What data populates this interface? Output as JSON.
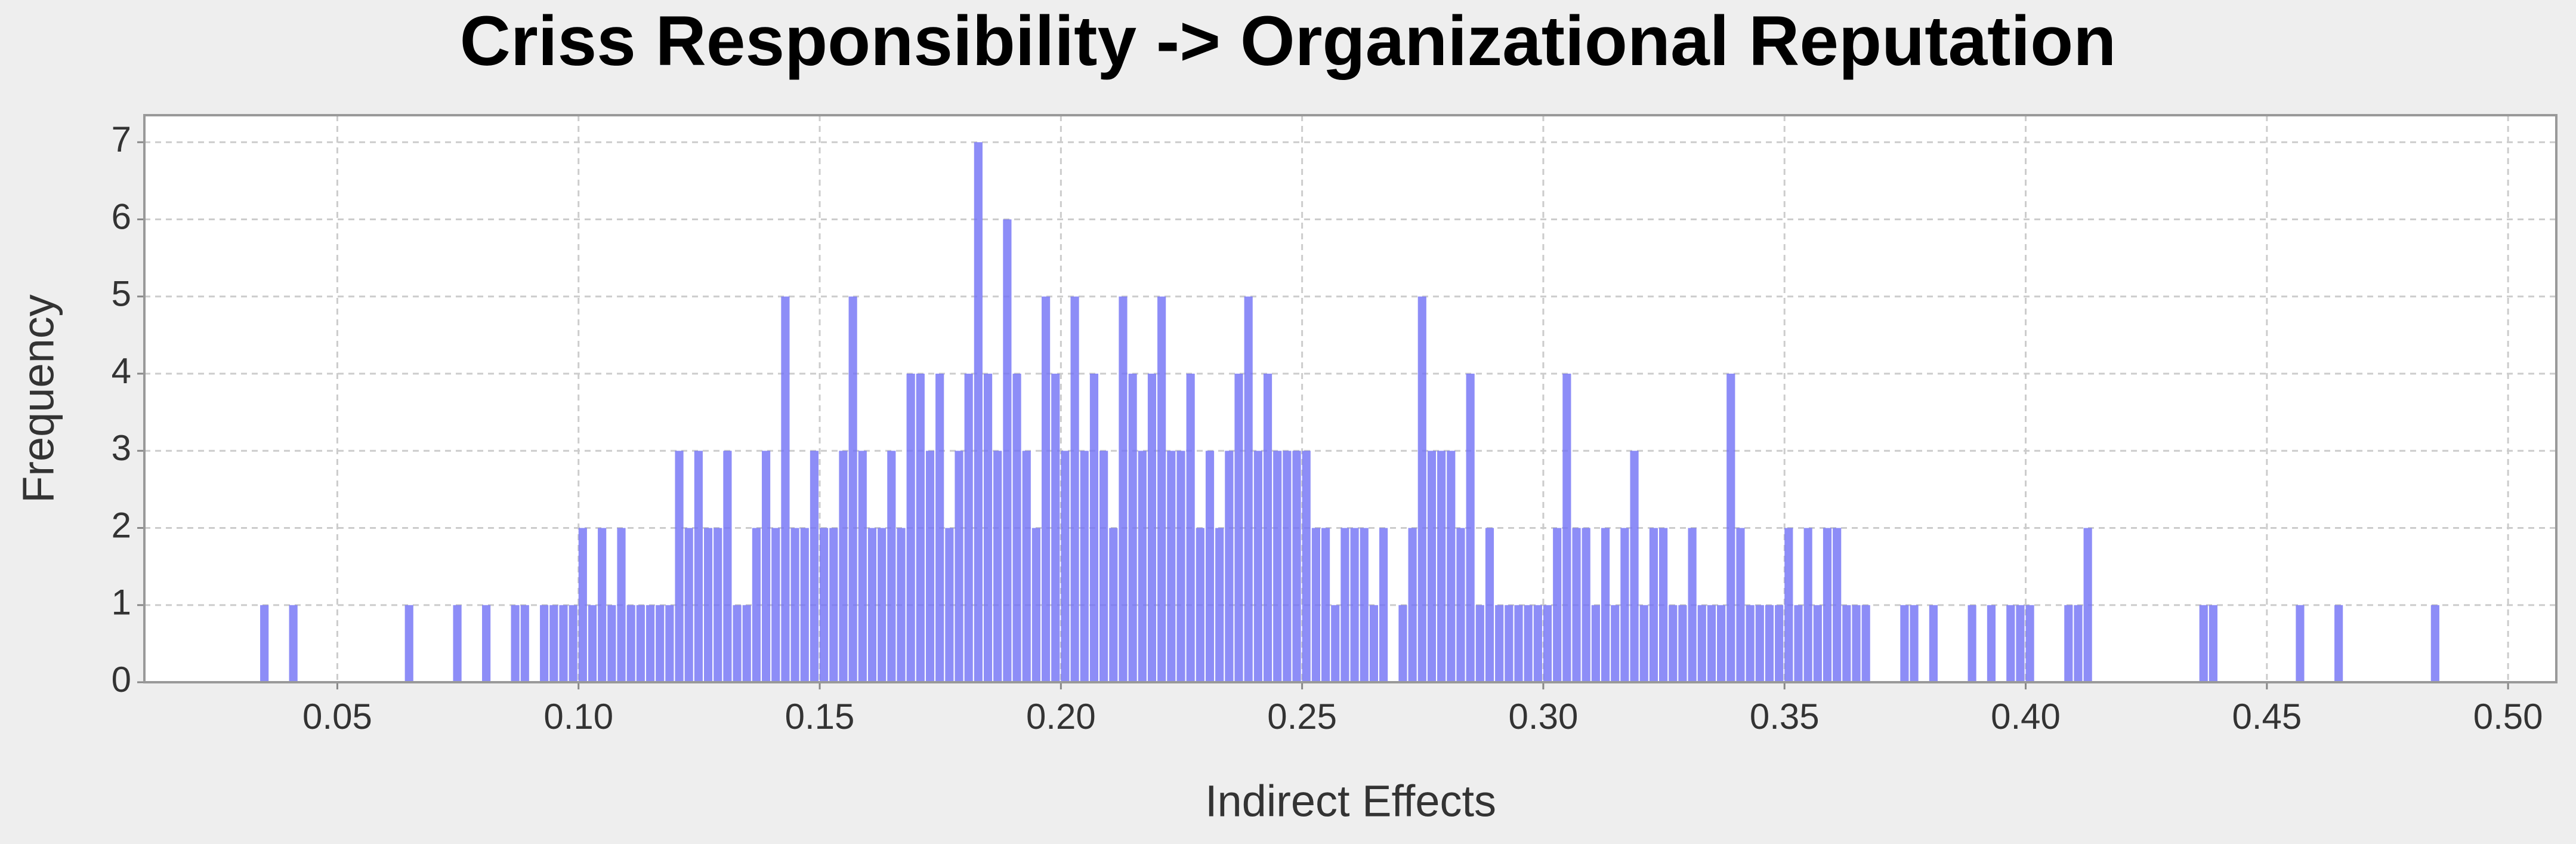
{
  "chart_data": {
    "type": "histogram",
    "title": "Criss Responsibility -> Organizational Reputation",
    "x_label": "Indirect Effects",
    "y_label": "Frequency",
    "color": "#7070f5",
    "grid": true,
    "xlim": [
      0.01,
      0.51
    ],
    "ylim": [
      0,
      7.35
    ],
    "xticks": [
      {
        "value": 0.05,
        "label": "0.05"
      },
      {
        "value": 0.1,
        "label": "0.10"
      },
      {
        "value": 0.15,
        "label": "0.15"
      },
      {
        "value": 0.2,
        "label": "0.20"
      },
      {
        "value": 0.25,
        "label": "0.25"
      },
      {
        "value": 0.3,
        "label": "0.30"
      },
      {
        "value": 0.35,
        "label": "0.35"
      },
      {
        "value": 0.4,
        "label": "0.40"
      },
      {
        "value": 0.45,
        "label": "0.45"
      },
      {
        "value": 0.5,
        "label": "0.50"
      }
    ],
    "yticks": [
      0,
      1,
      2,
      3,
      4,
      5,
      6,
      7
    ],
    "bins": [
      0.03,
      0.032,
      0.034,
      0.036,
      0.038,
      0.04,
      0.042,
      0.044,
      0.046,
      0.048,
      0.05,
      0.052,
      0.054,
      0.056,
      0.058,
      0.06,
      0.062,
      0.064,
      0.066,
      0.068,
      0.07,
      0.072,
      0.074,
      0.076,
      0.078,
      0.08,
      0.082,
      0.084,
      0.086,
      0.088,
      0.09,
      0.092,
      0.094,
      0.096,
      0.098,
      0.1,
      0.102,
      0.104,
      0.106,
      0.108,
      0.11,
      0.112,
      0.114,
      0.116,
      0.118,
      0.12,
      0.122,
      0.124,
      0.126,
      0.128,
      0.13,
      0.132,
      0.134,
      0.136,
      0.138,
      0.14,
      0.142,
      0.144,
      0.146,
      0.148,
      0.15,
      0.152,
      0.154,
      0.156,
      0.158,
      0.16,
      0.162,
      0.164,
      0.166,
      0.168,
      0.17,
      0.172,
      0.174,
      0.176,
      0.178,
      0.18,
      0.182,
      0.184,
      0.186,
      0.188,
      0.19,
      0.192,
      0.194,
      0.196,
      0.198,
      0.2,
      0.202,
      0.204,
      0.206,
      0.208,
      0.21,
      0.212,
      0.214,
      0.216,
      0.218,
      0.22,
      0.222,
      0.224,
      0.226,
      0.228,
      0.23,
      0.232,
      0.234,
      0.236,
      0.238,
      0.24,
      0.242,
      0.244,
      0.246,
      0.248,
      0.25,
      0.252,
      0.254,
      0.256,
      0.258,
      0.26,
      0.262,
      0.264,
      0.266,
      0.268,
      0.27,
      0.272,
      0.274,
      0.276,
      0.278,
      0.28,
      0.282,
      0.284,
      0.286,
      0.288,
      0.29,
      0.292,
      0.294,
      0.296,
      0.298,
      0.3,
      0.302,
      0.304,
      0.306,
      0.308,
      0.31,
      0.312,
      0.314,
      0.316,
      0.318,
      0.32,
      0.322,
      0.324,
      0.326,
      0.328,
      0.33,
      0.332,
      0.334,
      0.336,
      0.338,
      0.34,
      0.342,
      0.344,
      0.346,
      0.348,
      0.35,
      0.352,
      0.354,
      0.356,
      0.358,
      0.36,
      0.362,
      0.364,
      0.366,
      0.368,
      0.37,
      0.372,
      0.374,
      0.376,
      0.378,
      0.38,
      0.382,
      0.384,
      0.386,
      0.388,
      0.39,
      0.392,
      0.394,
      0.396,
      0.398,
      0.4,
      0.402,
      0.404,
      0.406,
      0.408,
      0.41,
      0.412,
      0.414,
      0.416,
      0.418,
      0.42,
      0.422,
      0.424,
      0.426,
      0.428,
      0.43,
      0.432,
      0.434,
      0.436,
      0.438,
      0.44,
      0.442,
      0.444,
      0.446,
      0.448,
      0.45,
      0.452,
      0.454,
      0.456,
      0.458,
      0.46,
      0.462,
      0.464,
      0.466,
      0.468,
      0.47,
      0.472,
      0.474,
      0.476,
      0.478,
      0.48,
      0.482,
      0.484,
      0.486,
      0.488,
      0.49
    ],
    "counts": [
      0,
      0,
      1,
      0,
      0,
      1,
      0,
      0,
      0,
      0,
      0,
      0,
      0,
      0,
      0,
      0,
      0,
      1,
      0,
      0,
      0,
      0,
      1,
      0,
      0,
      1,
      0,
      0,
      1,
      1,
      0,
      1,
      1,
      1,
      1,
      2,
      1,
      2,
      1,
      2,
      1,
      1,
      1,
      1,
      1,
      3,
      2,
      3,
      2,
      2,
      3,
      1,
      1,
      2,
      3,
      2,
      5,
      2,
      2,
      3,
      2,
      2,
      3,
      5,
      3,
      2,
      2,
      3,
      2,
      4,
      4,
      3,
      4,
      2,
      3,
      4,
      7,
      4,
      3,
      6,
      4,
      3,
      2,
      5,
      4,
      3,
      5,
      3,
      4,
      3,
      2,
      5,
      4,
      3,
      4,
      5,
      3,
      3,
      4,
      2,
      3,
      2,
      3,
      4,
      5,
      3,
      4,
      3,
      3,
      3,
      3,
      2,
      2,
      1,
      2,
      2,
      2,
      1,
      2,
      0,
      1,
      2,
      5,
      3,
      3,
      3,
      2,
      4,
      1,
      2,
      1,
      1,
      1,
      1,
      1,
      1,
      2,
      4,
      2,
      2,
      1,
      2,
      1,
      2,
      3,
      1,
      2,
      2,
      1,
      1,
      2,
      1,
      1,
      1,
      4,
      2,
      1,
      1,
      1,
      1,
      2,
      1,
      2,
      1,
      2,
      2,
      1,
      1,
      1,
      0,
      0,
      0,
      1,
      1,
      0,
      1,
      0,
      0,
      0,
      1,
      0,
      1,
      0,
      1,
      1,
      1,
      0,
      0,
      0,
      1,
      1,
      2,
      0,
      0,
      0,
      0,
      0,
      0,
      0,
      0,
      0,
      0,
      0,
      1,
      1,
      0,
      0,
      0,
      0,
      0,
      0,
      0,
      0,
      1,
      0,
      0,
      0,
      1,
      0,
      0,
      0,
      0,
      0,
      0,
      0,
      0,
      0,
      1,
      0,
      0
    ]
  }
}
